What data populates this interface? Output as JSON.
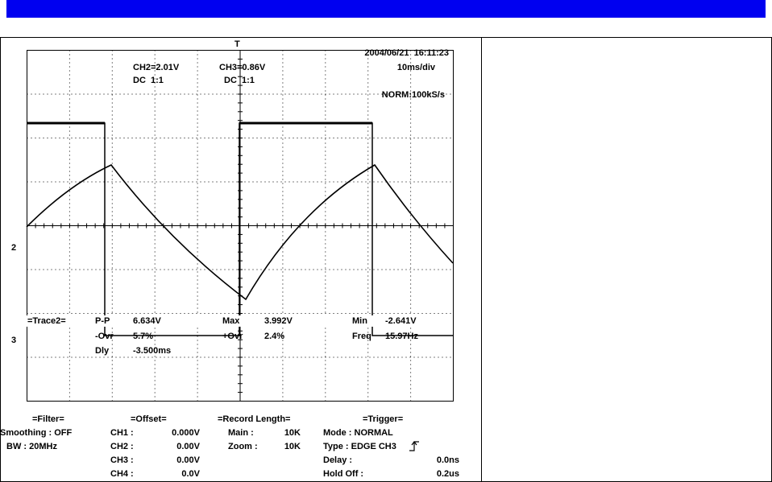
{
  "header": {
    "timestamp": "2004/06/21  16:11:23",
    "trigger_marker": "T"
  },
  "channels": [
    {
      "scale": "CH2=2.01V",
      "coupling": "DC  1:1"
    },
    {
      "scale": "CH3=0.86V",
      "coupling": "DC  1:1"
    }
  ],
  "timebase": "10ms/div",
  "sampling": "NORM:100kS/s",
  "markers": [
    "2",
    "3"
  ],
  "measurements": {
    "title": "=Trace2=",
    "pp": {
      "label": "P-P",
      "value": "6.634V"
    },
    "max": {
      "label": "Max",
      "value": "3.992V"
    },
    "min": {
      "label": "Min",
      "value": "-2.641V"
    },
    "novr": {
      "label": "-Ovr",
      "value": "5.7%"
    },
    "povr": {
      "label": "+Ovr",
      "value": "2.4%"
    },
    "freq": {
      "label": "Freq",
      "value": "15.97Hz"
    },
    "dly": {
      "label": "Dly",
      "value": "-3.500ms"
    }
  },
  "filter": {
    "title": "=Filter=",
    "smoothing": "Smoothing : OFF",
    "bw": "BW : 20MHz"
  },
  "offset": {
    "title": "=Offset=",
    "rows": [
      {
        "label": "CH1 :",
        "value": "0.000V"
      },
      {
        "label": "CH2 :",
        "value": "0.00V"
      },
      {
        "label": "CH3 :",
        "value": "0.00V"
      },
      {
        "label": "CH4 :",
        "value": "0.0V"
      }
    ]
  },
  "record_length": {
    "title": "=Record Length=",
    "rows": [
      {
        "label": "Main :",
        "value": "10K"
      },
      {
        "label": "Zoom :",
        "value": "10K"
      }
    ]
  },
  "trigger": {
    "title": "=Trigger=",
    "mode": "Mode : NORMAL",
    "type": "Type : EDGE CH3",
    "delay": {
      "label": "Delay :",
      "value": "0.0ns"
    },
    "hold_off": {
      "label": "Hold Off :",
      "value": "0.2us"
    }
  }
}
